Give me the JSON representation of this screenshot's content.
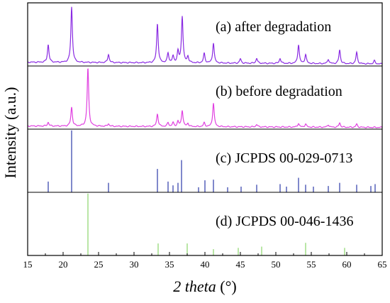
{
  "chart_data": {
    "type": "line",
    "xlabel_italic": "2 theta",
    "xlabel_unit": " (°)",
    "ylabel": "Intensity (a.u.)",
    "xlim": [
      15,
      65
    ],
    "xticks": [
      15,
      20,
      25,
      30,
      35,
      40,
      45,
      50,
      55,
      60,
      65
    ],
    "grid": false,
    "panels": [
      {
        "label": "(a) after degradation",
        "kind": "pattern",
        "color": "#8a2be2",
        "baseline": 0.06,
        "peaks": [
          {
            "x": 17.9,
            "h": 0.28
          },
          {
            "x": 21.2,
            "h": 0.88
          },
          {
            "x": 26.4,
            "h": 0.13
          },
          {
            "x": 33.3,
            "h": 0.62
          },
          {
            "x": 34.8,
            "h": 0.15
          },
          {
            "x": 35.5,
            "h": 0.1
          },
          {
            "x": 36.2,
            "h": 0.18
          },
          {
            "x": 36.8,
            "h": 0.74
          },
          {
            "x": 37.6,
            "h": 0.1
          },
          {
            "x": 39.9,
            "h": 0.15
          },
          {
            "x": 41.2,
            "h": 0.32
          },
          {
            "x": 45.0,
            "h": 0.07
          },
          {
            "x": 47.3,
            "h": 0.08
          },
          {
            "x": 50.6,
            "h": 0.08
          },
          {
            "x": 53.2,
            "h": 0.3
          },
          {
            "x": 54.2,
            "h": 0.14
          },
          {
            "x": 57.4,
            "h": 0.07
          },
          {
            "x": 59.0,
            "h": 0.22
          },
          {
            "x": 61.4,
            "h": 0.18
          },
          {
            "x": 63.9,
            "h": 0.05
          }
        ]
      },
      {
        "label": "(b) before degradation",
        "kind": "pattern",
        "color": "#e040e0",
        "baseline": 0.05,
        "peaks": [
          {
            "x": 17.9,
            "h": 0.06
          },
          {
            "x": 21.2,
            "h": 0.3
          },
          {
            "x": 23.5,
            "h": 0.92
          },
          {
            "x": 26.4,
            "h": 0.04
          },
          {
            "x": 33.3,
            "h": 0.2
          },
          {
            "x": 34.8,
            "h": 0.06
          },
          {
            "x": 35.5,
            "h": 0.06
          },
          {
            "x": 36.2,
            "h": 0.08
          },
          {
            "x": 36.8,
            "h": 0.26
          },
          {
            "x": 37.6,
            "h": 0.05
          },
          {
            "x": 39.9,
            "h": 0.06
          },
          {
            "x": 41.2,
            "h": 0.38
          },
          {
            "x": 47.3,
            "h": 0.04
          },
          {
            "x": 53.2,
            "h": 0.06
          },
          {
            "x": 54.2,
            "h": 0.05
          },
          {
            "x": 57.4,
            "h": 0.04
          },
          {
            "x": 59.0,
            "h": 0.07
          },
          {
            "x": 61.4,
            "h": 0.05
          }
        ]
      },
      {
        "label": "(c) JCPDS 00-029-0713",
        "kind": "stick",
        "color": "#2b3aa8",
        "peaks": [
          {
            "x": 17.9,
            "h": 0.17
          },
          {
            "x": 21.2,
            "h": 0.98
          },
          {
            "x": 26.4,
            "h": 0.15
          },
          {
            "x": 33.3,
            "h": 0.37
          },
          {
            "x": 34.8,
            "h": 0.17
          },
          {
            "x": 35.5,
            "h": 0.11
          },
          {
            "x": 36.2,
            "h": 0.15
          },
          {
            "x": 36.7,
            "h": 0.51
          },
          {
            "x": 39.1,
            "h": 0.08
          },
          {
            "x": 40.0,
            "h": 0.19
          },
          {
            "x": 41.2,
            "h": 0.2
          },
          {
            "x": 43.2,
            "h": 0.08
          },
          {
            "x": 45.1,
            "h": 0.09
          },
          {
            "x": 47.3,
            "h": 0.12
          },
          {
            "x": 50.6,
            "h": 0.13
          },
          {
            "x": 51.5,
            "h": 0.09
          },
          {
            "x": 53.2,
            "h": 0.23
          },
          {
            "x": 54.2,
            "h": 0.12
          },
          {
            "x": 55.3,
            "h": 0.09
          },
          {
            "x": 57.4,
            "h": 0.1
          },
          {
            "x": 59.0,
            "h": 0.15
          },
          {
            "x": 61.4,
            "h": 0.12
          },
          {
            "x": 63.4,
            "h": 0.1
          },
          {
            "x": 64.0,
            "h": 0.13
          }
        ]
      },
      {
        "label": "(d) JCPDS 00-046-1436",
        "kind": "stick",
        "color": "#8ad46b",
        "peaks": [
          {
            "x": 23.5,
            "h": 0.98
          },
          {
            "x": 33.4,
            "h": 0.19
          },
          {
            "x": 37.5,
            "h": 0.19
          },
          {
            "x": 41.2,
            "h": 0.1
          },
          {
            "x": 44.7,
            "h": 0.12
          },
          {
            "x": 48.0,
            "h": 0.14
          },
          {
            "x": 54.2,
            "h": 0.2
          },
          {
            "x": 59.7,
            "h": 0.12
          }
        ]
      }
    ]
  }
}
